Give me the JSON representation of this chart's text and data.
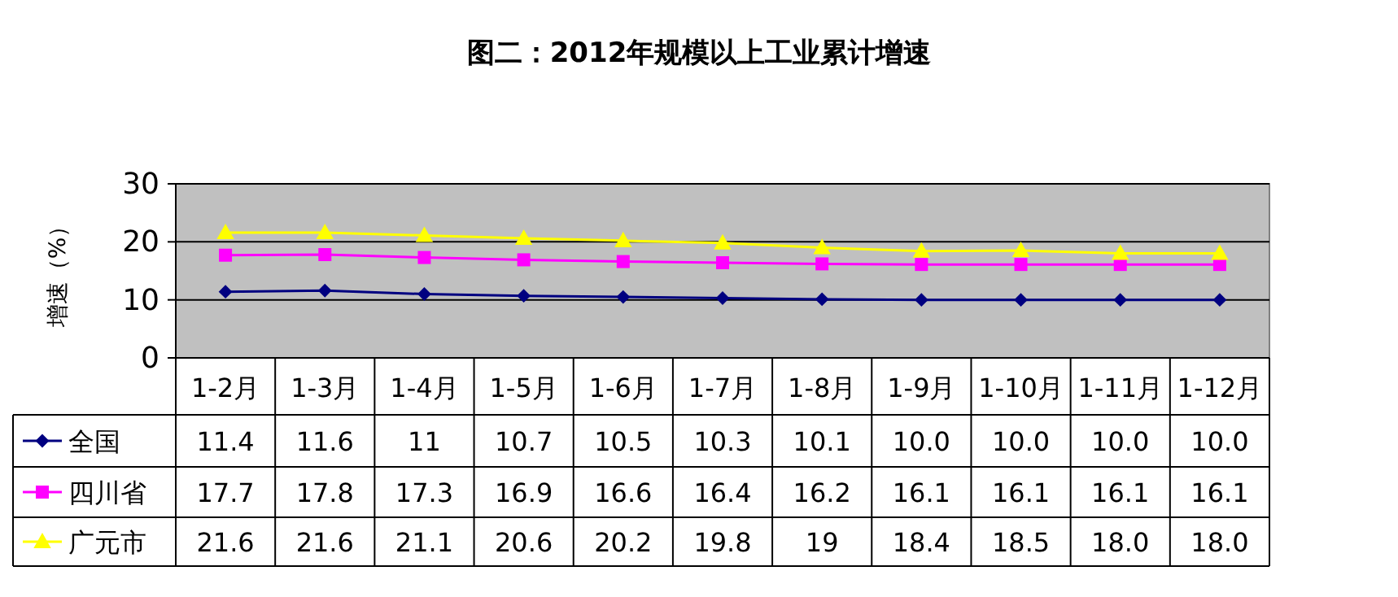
{
  "chart_data": {
    "type": "line",
    "title": "图二：2012年规模以上工业累计增速",
    "ylabel": "增速（%）",
    "categories": [
      "1-2月",
      "1-3月",
      "1-4月",
      "1-5月",
      "1-6月",
      "1-7月",
      "1-8月",
      "1-9月",
      "1-10月",
      "1-11月",
      "1-12月"
    ],
    "ylim": [
      0,
      30
    ],
    "yticks": [
      0,
      10,
      20,
      30
    ],
    "grid": "y",
    "legend": "left",
    "line_style": "solid",
    "series": [
      {
        "name": "全国",
        "color": "#000080",
        "marker": "diamond",
        "values": [
          11.4,
          11.6,
          11,
          10.7,
          10.5,
          10.3,
          10.1,
          10.0,
          10.0,
          10.0,
          10.0
        ],
        "value_labels": [
          "11.4",
          "11.6",
          "11",
          "10.7",
          "10.5",
          "10.3",
          "10.1",
          "10.0",
          "10.0",
          "10.0",
          "10.0"
        ]
      },
      {
        "name": "四川省",
        "color": "#ff00ff",
        "marker": "square",
        "values": [
          17.7,
          17.8,
          17.3,
          16.9,
          16.6,
          16.4,
          16.2,
          16.1,
          16.1,
          16.1,
          16.1
        ],
        "value_labels": [
          "17.7",
          "17.8",
          "17.3",
          "16.9",
          "16.6",
          "16.4",
          "16.2",
          "16.1",
          "16.1",
          "16.1",
          "16.1"
        ]
      },
      {
        "name": "广元市",
        "color": "#ffff00",
        "marker": "triangle",
        "values": [
          21.6,
          21.6,
          21.1,
          20.6,
          20.2,
          19.8,
          19,
          18.4,
          18.5,
          18.0,
          18.0
        ],
        "value_labels": [
          "21.6",
          "21.6",
          "21.1",
          "20.6",
          "20.2",
          "19.8",
          "19",
          "18.4",
          "18.5",
          "18.0",
          "18.0"
        ]
      }
    ]
  }
}
